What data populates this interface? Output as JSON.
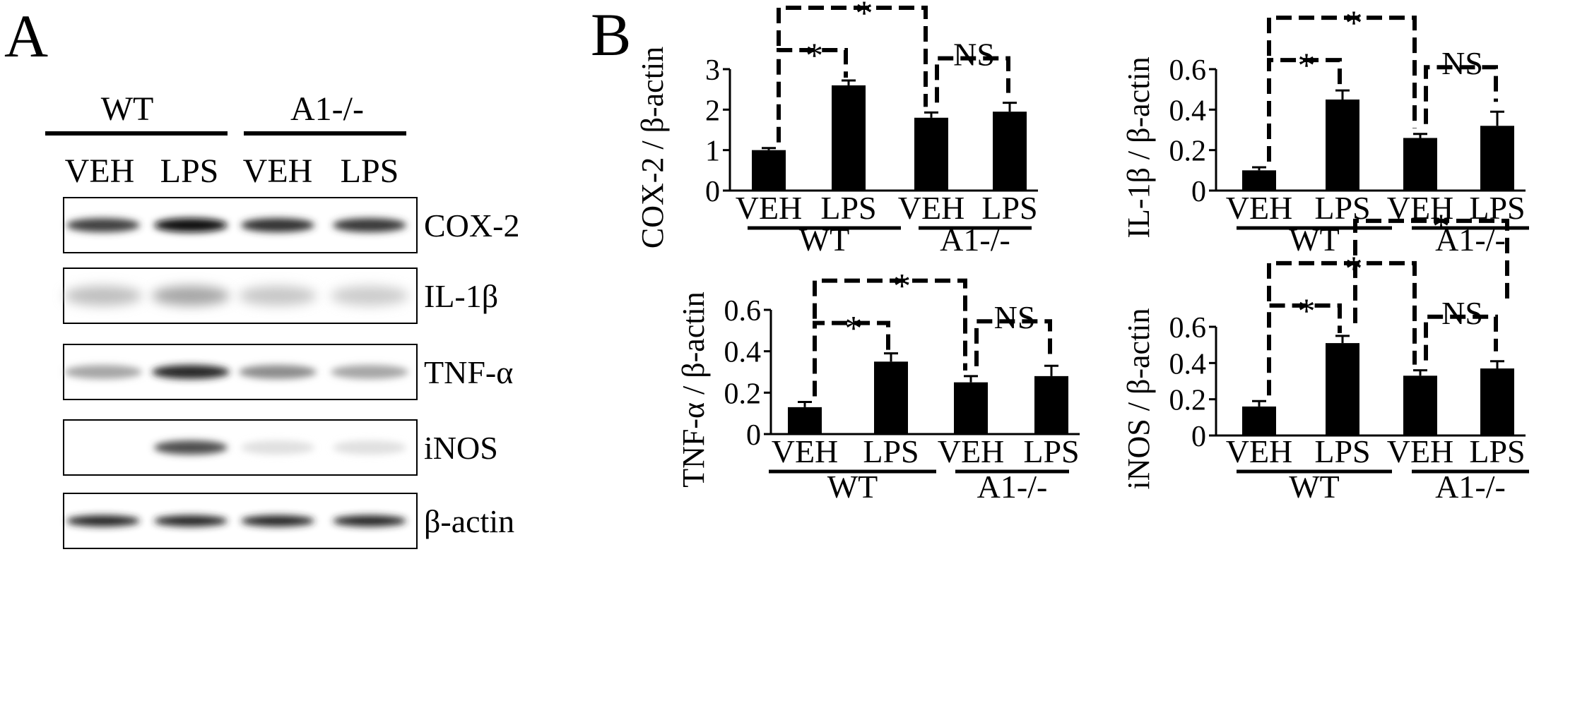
{
  "panel_a": {
    "label": "A",
    "groups": [
      "WT",
      "A1-/-"
    ],
    "lanes": [
      "VEH",
      "LPS",
      "VEH",
      "LPS"
    ],
    "blots": [
      {
        "protein": "COX-2",
        "intensity": [
          0.75,
          0.95,
          0.8,
          0.78
        ]
      },
      {
        "protein": "IL-1β",
        "intensity": [
          0.25,
          0.35,
          0.22,
          0.2
        ]
      },
      {
        "protein": "TNF-α",
        "intensity": [
          0.35,
          0.85,
          0.45,
          0.35
        ]
      },
      {
        "protein": "iNOS",
        "intensity": [
          0.0,
          0.7,
          0.12,
          0.12
        ]
      },
      {
        "protein": "β-actin",
        "intensity": [
          0.85,
          0.85,
          0.85,
          0.85
        ]
      }
    ]
  },
  "panel_b": {
    "label": "B",
    "significance_label": "*",
    "ns_label": "NS"
  },
  "chart_data": [
    {
      "type": "bar",
      "ylabel": "COX-2 / β-actin",
      "categories": [
        "VEH",
        "LPS",
        "VEH",
        "LPS"
      ],
      "groups": [
        "WT",
        "A1-/-"
      ],
      "values": [
        1.0,
        2.6,
        1.8,
        1.95
      ],
      "errors": [
        0.05,
        0.12,
        0.13,
        0.22
      ],
      "ylim": [
        0,
        3
      ],
      "yticks": [
        "0",
        "1",
        "2",
        "3"
      ],
      "annotations": [
        "*",
        "*",
        "NS"
      ]
    },
    {
      "type": "bar",
      "ylabel": "IL-1β / β-actin",
      "categories": [
        "VEH",
        "LPS",
        "VEH",
        "LPS"
      ],
      "groups": [
        "WT",
        "A1-/-"
      ],
      "values": [
        0.1,
        0.45,
        0.26,
        0.32
      ],
      "errors": [
        0.015,
        0.045,
        0.02,
        0.07
      ],
      "ylim": [
        0,
        0.6
      ],
      "yticks": [
        "0",
        "0.2",
        "0.4",
        "0.6"
      ],
      "annotations": [
        "*",
        "*",
        "NS"
      ]
    },
    {
      "type": "bar",
      "ylabel": "TNF-α / β-actin",
      "categories": [
        "VEH",
        "LPS",
        "VEH",
        "LPS"
      ],
      "groups": [
        "WT",
        "A1-/-"
      ],
      "values": [
        0.13,
        0.35,
        0.25,
        0.28
      ],
      "errors": [
        0.025,
        0.04,
        0.03,
        0.05
      ],
      "ylim": [
        0,
        0.6
      ],
      "yticks": [
        "0",
        "0.2",
        "0.4",
        "0.6"
      ],
      "annotations": [
        "*",
        "*",
        "NS"
      ]
    },
    {
      "type": "bar",
      "ylabel": "iNOS / β-actin",
      "categories": [
        "VEH",
        "LPS",
        "VEH",
        "LPS"
      ],
      "groups": [
        "WT",
        "A1-/-"
      ],
      "values": [
        0.16,
        0.51,
        0.33,
        0.37
      ],
      "errors": [
        0.03,
        0.04,
        0.03,
        0.04
      ],
      "ylim": [
        0,
        0.6
      ],
      "yticks": [
        "0",
        "0.2",
        "0.4",
        "0.6"
      ],
      "annotations": [
        "*",
        "*",
        "NS",
        "*"
      ]
    }
  ]
}
